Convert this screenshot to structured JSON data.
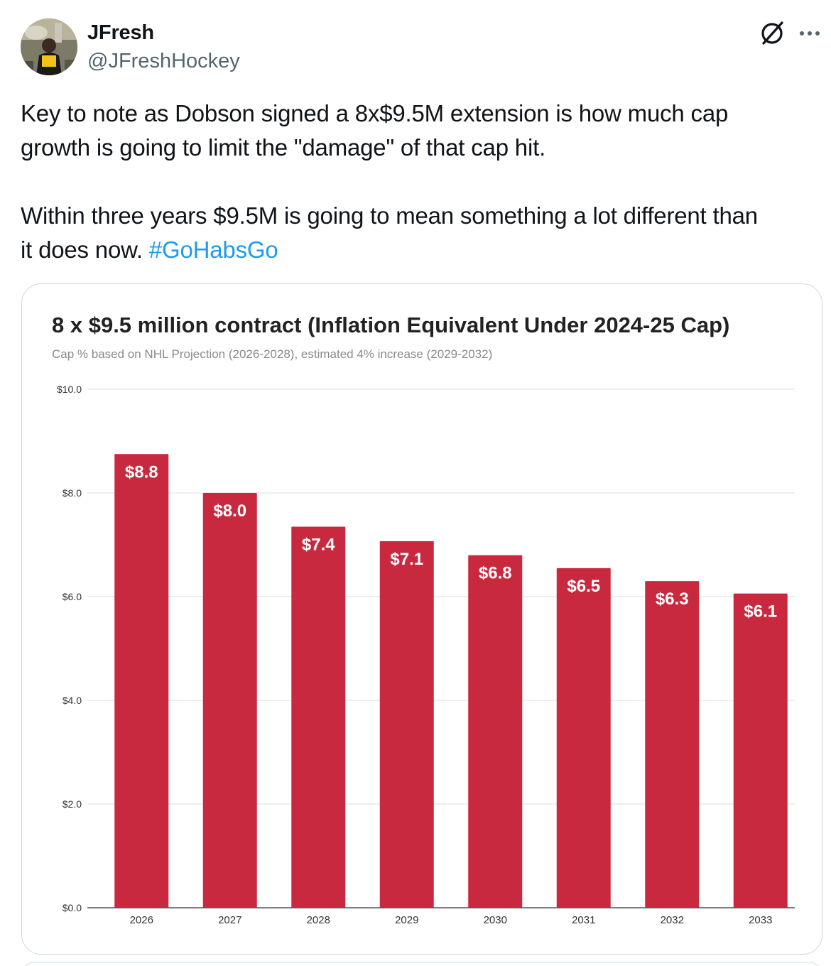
{
  "author": {
    "display_name": "JFresh",
    "handle": "@JFreshHockey",
    "avatar_icon": "avatar-photo"
  },
  "header_icons": {
    "grok": "grok-icon",
    "more": "more-options-icon"
  },
  "tweet": {
    "line1": "Key to note as Dobson signed a 8x$9.5M extension is how much cap",
    "line2": "growth is going to limit the \"damage\" of that cap hit.",
    "line3": "Within three years $9.5M is going to mean something a lot different than",
    "line4_prefix": "it does now. ",
    "hashtag": "#GoHabsGo"
  },
  "colors": {
    "bar": "#c8293f",
    "hashtag": "#1d9bf0",
    "grid": "#dddddd",
    "axis": "#555555"
  },
  "chart_data": {
    "type": "bar",
    "title": "8 x $9.5 million contract (Inflation Equivalent Under 2024-25 Cap)",
    "subtitle": "Cap % based on NHL Projection (2026-2028), estimated 4% increase (2029-2032)",
    "categories": [
      "2026",
      "2027",
      "2028",
      "2029",
      "2030",
      "2031",
      "2032",
      "2033"
    ],
    "values": [
      8.75,
      8.0,
      7.35,
      7.07,
      6.8,
      6.55,
      6.3,
      6.06
    ],
    "data_labels": [
      "$8.8",
      "$8.0",
      "$7.4",
      "$7.1",
      "$6.8",
      "$6.5",
      "$6.3",
      "$6.1"
    ],
    "y_ticks": [
      0,
      2,
      4,
      6,
      8,
      10
    ],
    "y_tick_labels": [
      "$0.0",
      "$2.0",
      "$4.0",
      "$6.0",
      "$8.0",
      "$10.0"
    ],
    "ylim": [
      0,
      10
    ],
    "xlabel": "",
    "ylabel": "",
    "grid": true,
    "legend": "none"
  }
}
